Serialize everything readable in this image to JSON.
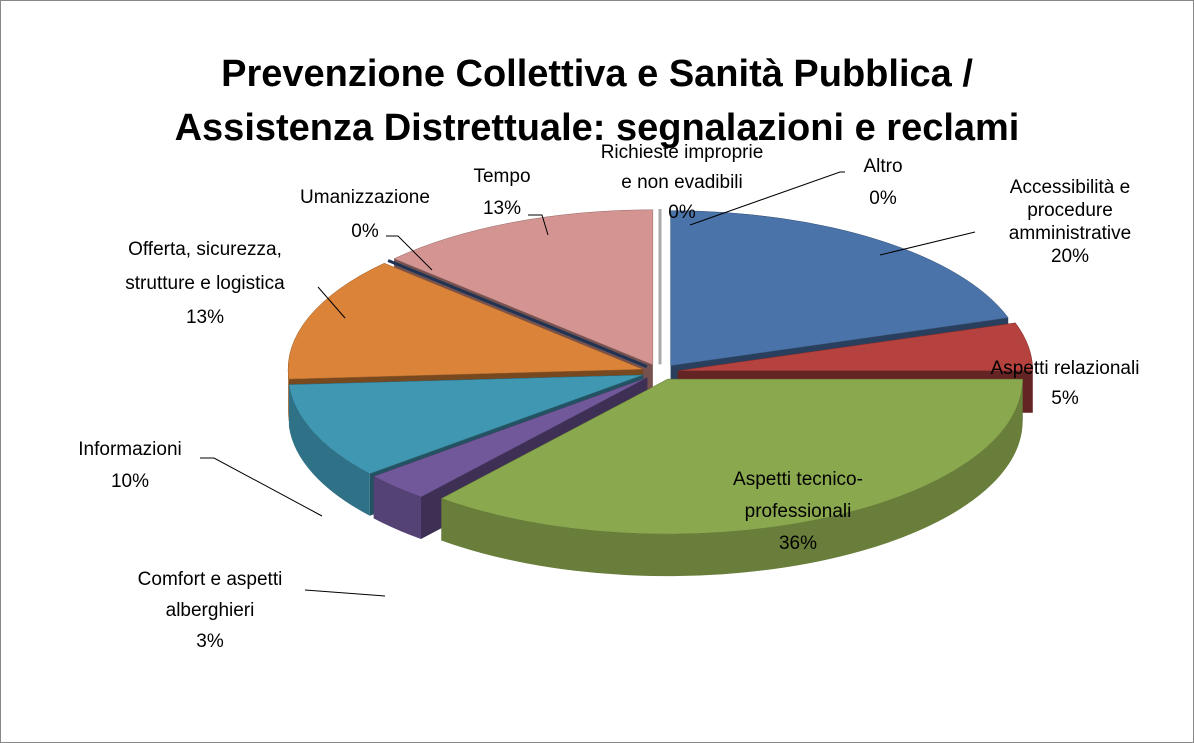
{
  "chart_data": {
    "type": "pie",
    "pie_style": "3d-exploded",
    "title": "Prevenzione Collettiva e Sanità Pubblica / Assistenza Distrettuale: segnalazioni e reclami",
    "categories": [
      "Accessibilità e procedure amministrative",
      "Aspetti relazionali",
      "Aspetti tecnico-professionali",
      "Comfort e aspetti alberghieri",
      "Informazioni",
      "Offerta, sicurezza, strutture e logistica",
      "Umanizzazione",
      "Tempo",
      "Richieste improprie e non evadibili",
      "Altro"
    ],
    "values": [
      20,
      5,
      36,
      3,
      10,
      13,
      0,
      13,
      0,
      0
    ],
    "value_labels": [
      "20%",
      "5%",
      "36%",
      "3%",
      "10%",
      "13%",
      "0%",
      "13%",
      "0%",
      "0%"
    ],
    "colors": [
      "#4a73a9",
      "#b5423f",
      "#8aa84d",
      "#71589a",
      "#3f97b2",
      "#db8338",
      "#2c4a78",
      "#d49492",
      "#9bbb59",
      "#f2f2f2"
    ]
  }
}
